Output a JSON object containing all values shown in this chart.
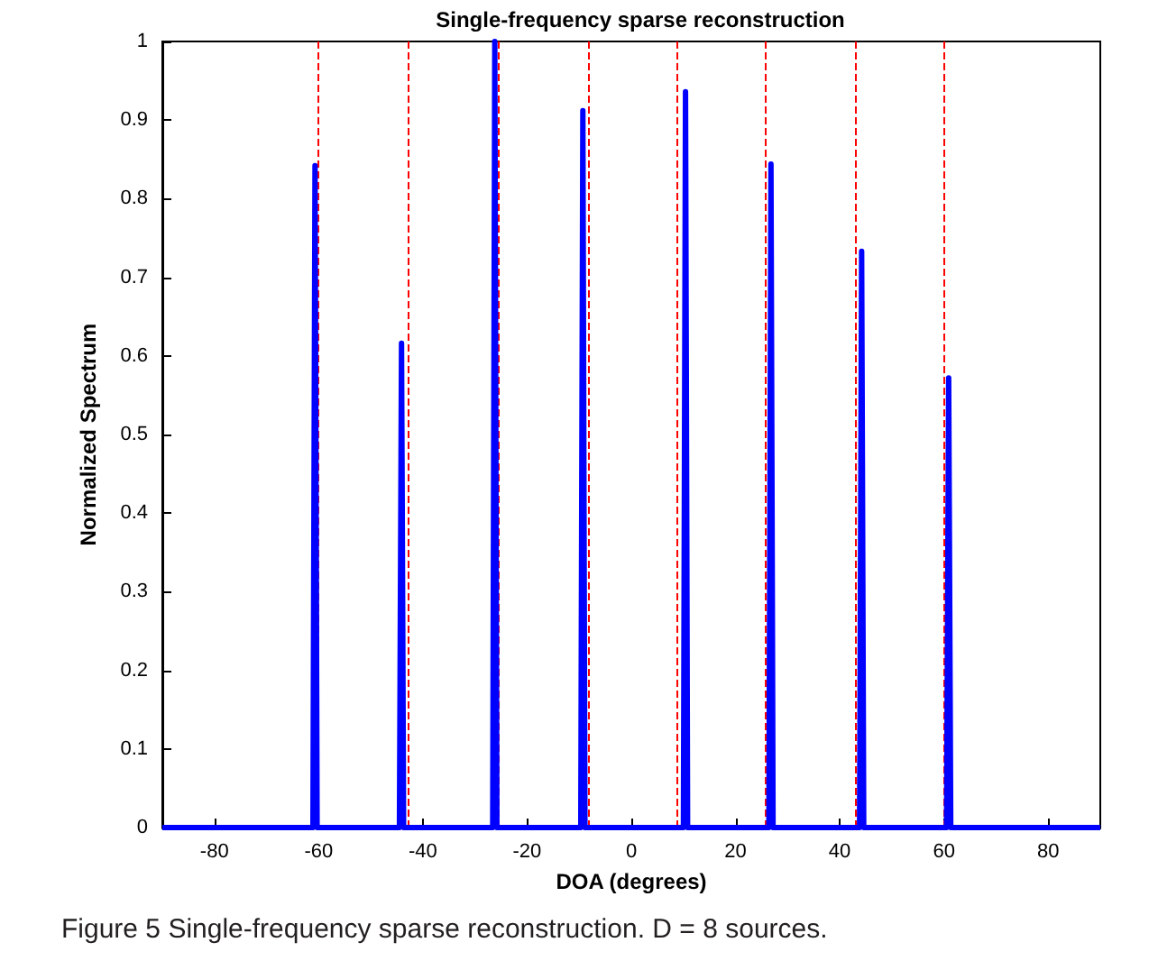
{
  "chart_data": {
    "type": "line",
    "title": "Single-frequency sparse reconstruction",
    "xlabel": "DOA (degrees)",
    "ylabel": "Normalized Spectrum",
    "annotations": [
      "Figure 5 Single-frequency sparse reconstruction. D = 8 sources."
    ],
    "series": [
      {
        "color": "#0000ff",
        "x": [
          -90,
          -61.1,
          -60.7,
          -60.3,
          -44.5,
          -44.1,
          -43.7,
          -26.6,
          -26.2,
          -25.8,
          -9.7,
          -9.3,
          -8.9,
          10.0,
          10.4,
          10.8,
          26.4,
          26.8,
          27.2,
          43.8,
          44.2,
          44.6,
          60.5,
          60.9,
          61.3,
          90
        ],
        "values": [
          0,
          0,
          0.842,
          0,
          0,
          0.616,
          0,
          0,
          1.0,
          0,
          0,
          0.912,
          0,
          0,
          0.936,
          0,
          0,
          0.844,
          0,
          0,
          0.733,
          0,
          0,
          0.572,
          0,
          0
        ]
      }
    ],
    "ref_lines": [
      {
        "axis": "x",
        "value": -60,
        "color": "#ff0000",
        "line_style": "dashed"
      },
      {
        "axis": "x",
        "value": -42.7,
        "color": "#ff0000",
        "line_style": "dashed"
      },
      {
        "axis": "x",
        "value": -25.5,
        "color": "#ff0000",
        "line_style": "dashed"
      },
      {
        "axis": "x",
        "value": -8.3,
        "color": "#ff0000",
        "line_style": "dashed"
      },
      {
        "axis": "x",
        "value": 8.8,
        "color": "#ff0000",
        "line_style": "dashed"
      },
      {
        "axis": "x",
        "value": 25.8,
        "color": "#ff0000",
        "line_style": "dashed"
      },
      {
        "axis": "x",
        "value": 42.9,
        "color": "#ff0000",
        "line_style": "dashed"
      },
      {
        "axis": "x",
        "value": 59.9,
        "color": "#ff0000",
        "line_style": "dashed"
      }
    ],
    "xlim": [
      -90,
      90
    ],
    "xticks": [
      -80,
      -60,
      -40,
      -20,
      0,
      20,
      40,
      60,
      80
    ],
    "ylim": [
      0,
      1
    ],
    "yticks": [
      0,
      0.1,
      0.2,
      0.3,
      0.4,
      0.5,
      0.6,
      0.7,
      0.8,
      0.9,
      1
    ],
    "grid": false,
    "marker": "none",
    "line_style": "solid"
  }
}
